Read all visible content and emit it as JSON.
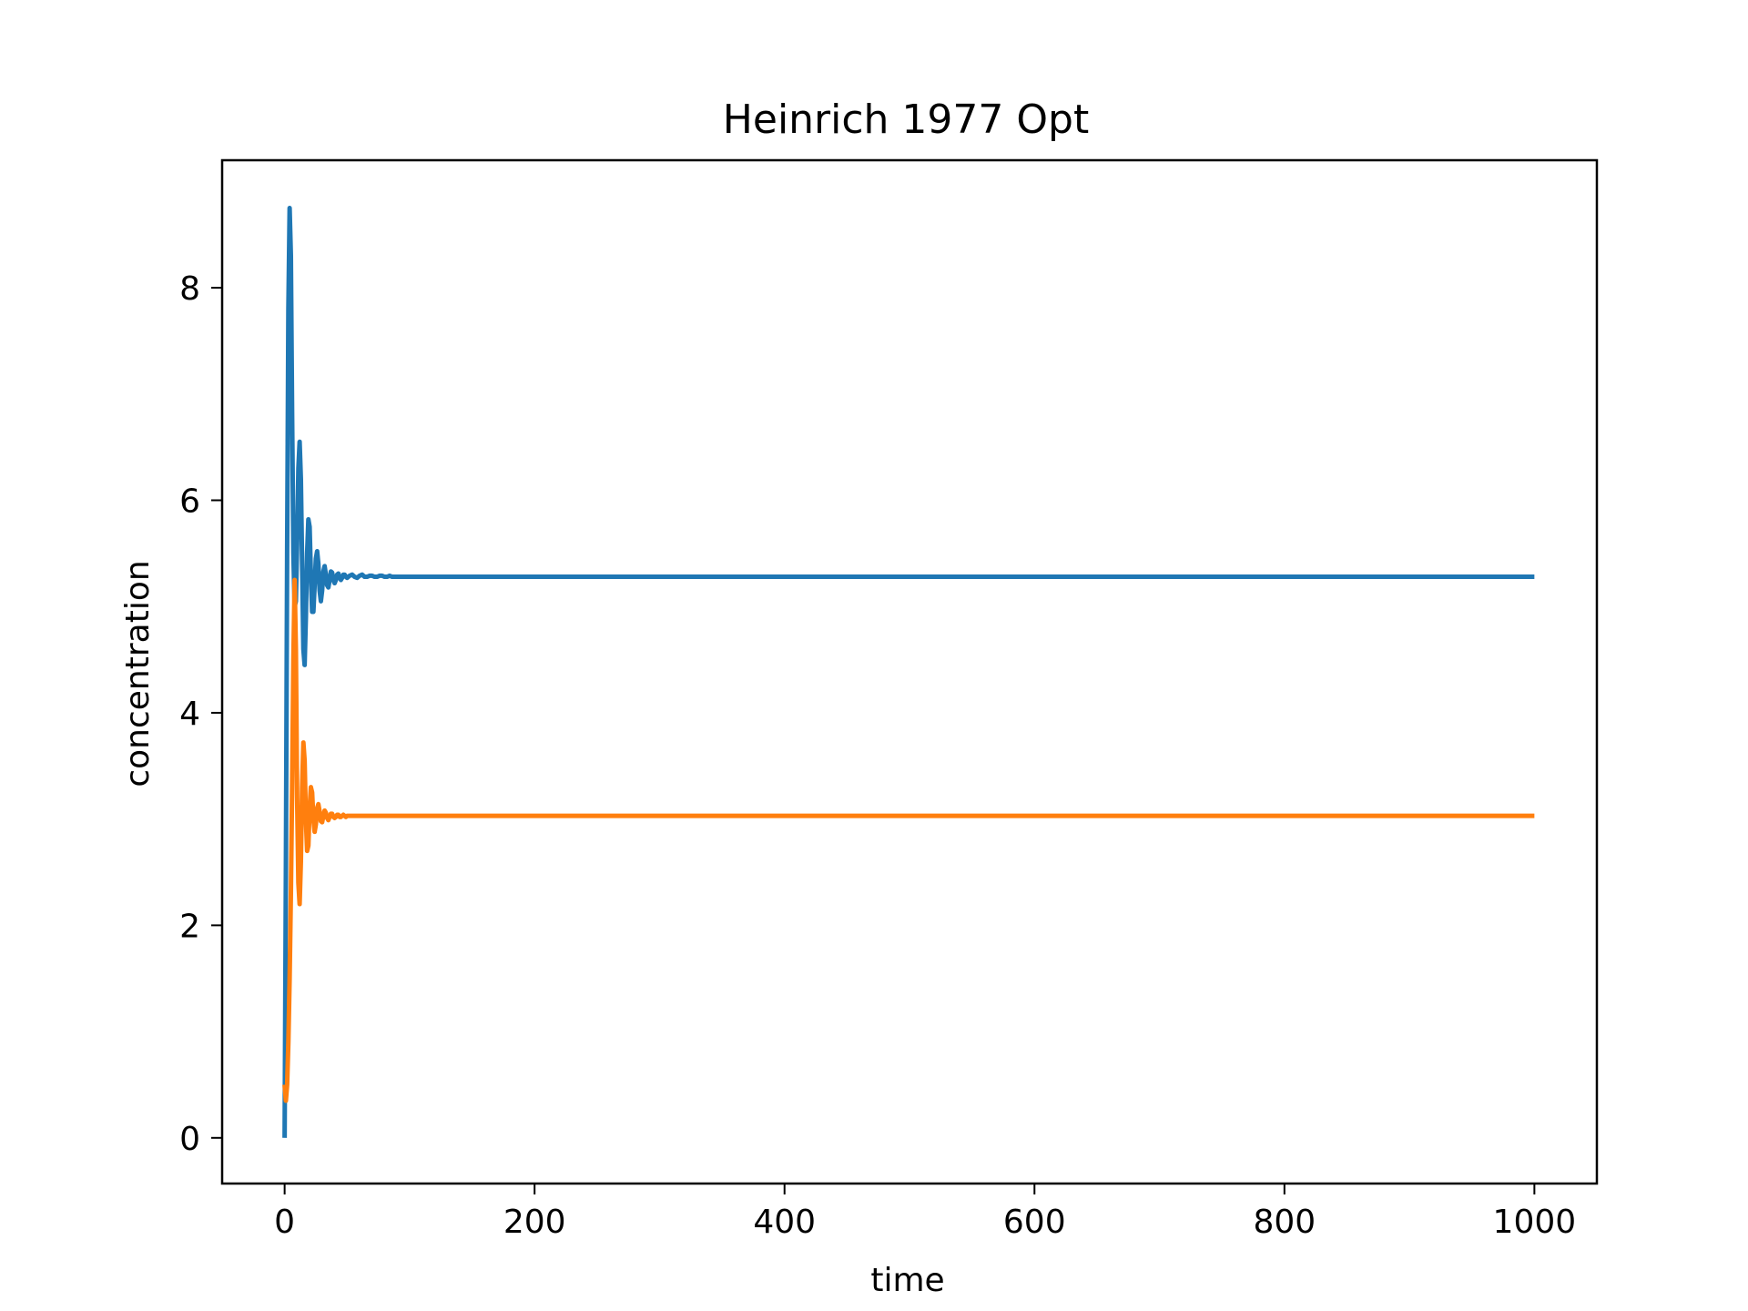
{
  "chart_data": {
    "type": "line",
    "title": "Heinrich 1977 Opt",
    "xlabel": "time",
    "ylabel": "concentration",
    "xlim": [
      -50,
      1050
    ],
    "ylim": [
      -0.43,
      9.2
    ],
    "x_ticks": [
      0,
      200,
      400,
      600,
      800,
      1000
    ],
    "y_ticks": [
      0,
      2,
      4,
      6,
      8
    ],
    "x_tick_labels": [
      "0",
      "200",
      "400",
      "600",
      "800",
      "1000"
    ],
    "y_tick_labels": [
      "0",
      "2",
      "4",
      "6",
      "8"
    ],
    "grid": false,
    "legend": "none",
    "series": [
      {
        "color": "#1f77b4",
        "x": [
          0,
          1,
          2,
          3,
          4,
          5,
          6,
          7,
          8,
          9,
          10,
          11,
          12,
          13,
          14,
          15,
          16,
          17,
          18,
          19,
          20,
          21,
          22,
          23,
          24,
          25,
          26,
          27,
          28,
          29,
          30,
          31,
          32,
          33,
          34,
          35,
          36,
          37,
          38,
          39,
          40,
          41,
          42,
          43,
          44,
          45,
          46,
          47,
          48,
          49,
          50,
          52,
          54,
          56,
          58,
          60,
          62,
          64,
          66,
          68,
          70,
          72,
          74,
          76,
          78,
          80,
          82,
          84,
          86,
          88,
          90,
          95,
          100,
          200,
          400,
          600,
          800,
          1000
        ],
        "values": [
          0.0,
          2.5,
          5.5,
          7.8,
          8.75,
          8.3,
          6.8,
          5.5,
          5.0,
          5.05,
          5.6,
          6.3,
          6.55,
          6.2,
          5.4,
          4.6,
          4.45,
          4.9,
          5.5,
          5.82,
          5.75,
          5.3,
          4.95,
          4.95,
          5.2,
          5.45,
          5.52,
          5.4,
          5.15,
          5.05,
          5.15,
          5.33,
          5.38,
          5.3,
          5.2,
          5.18,
          5.25,
          5.33,
          5.32,
          5.25,
          5.22,
          5.25,
          5.3,
          5.31,
          5.27,
          5.25,
          5.27,
          5.3,
          5.3,
          5.28,
          5.27,
          5.29,
          5.3,
          5.28,
          5.27,
          5.29,
          5.3,
          5.28,
          5.28,
          5.29,
          5.29,
          5.28,
          5.28,
          5.29,
          5.29,
          5.28,
          5.28,
          5.29,
          5.28,
          5.28,
          5.28,
          5.28,
          5.28,
          5.28,
          5.28,
          5.28,
          5.28,
          5.28
        ]
      },
      {
        "color": "#ff7f0e",
        "x": [
          0,
          1,
          2,
          3,
          4,
          5,
          6,
          7,
          8,
          9,
          10,
          11,
          12,
          13,
          14,
          15,
          16,
          17,
          18,
          19,
          20,
          21,
          22,
          23,
          24,
          25,
          26,
          27,
          28,
          29,
          30,
          31,
          32,
          33,
          34,
          35,
          36,
          37,
          38,
          39,
          40,
          41,
          42,
          43,
          44,
          45,
          46,
          47,
          48,
          49,
          50,
          52,
          54,
          56,
          58,
          60,
          62,
          64,
          66,
          68,
          70,
          72,
          74,
          76,
          78,
          80,
          82,
          84,
          86,
          88,
          90,
          95,
          100,
          200,
          400,
          600,
          800,
          1000
        ],
        "values": [
          0.5,
          0.35,
          0.5,
          0.9,
          1.5,
          2.3,
          3.3,
          4.5,
          5.25,
          4.6,
          3.2,
          2.4,
          2.2,
          2.6,
          3.3,
          3.72,
          3.55,
          3.0,
          2.7,
          2.75,
          3.1,
          3.3,
          3.25,
          3.0,
          2.88,
          2.95,
          3.1,
          3.14,
          3.07,
          2.98,
          2.97,
          3.03,
          3.08,
          3.06,
          3.01,
          2.99,
          3.02,
          3.05,
          3.05,
          3.02,
          3.01,
          3.02,
          3.04,
          3.04,
          3.02,
          3.02,
          3.03,
          3.04,
          3.03,
          3.02,
          3.03,
          3.03,
          3.03,
          3.03,
          3.03,
          3.03,
          3.03,
          3.03,
          3.03,
          3.03,
          3.03,
          3.03,
          3.03,
          3.03,
          3.03,
          3.03,
          3.03,
          3.03,
          3.03,
          3.03,
          3.03,
          3.03,
          3.03,
          3.03,
          3.03,
          3.03,
          3.03,
          3.03
        ]
      }
    ]
  }
}
